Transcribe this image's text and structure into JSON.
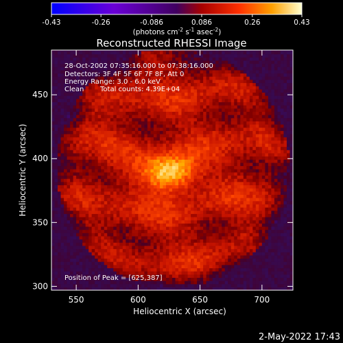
{
  "chart_data": {
    "type": "heatmap",
    "title": "Reconstructed RHESSI Image",
    "xlabel": "Heliocentric X (arcsec)",
    "ylabel": "Heliocentric Y (arcsec)",
    "xlim": [
      530,
      725
    ],
    "ylim": [
      297,
      485
    ],
    "x_ticks": [
      550,
      600,
      650,
      700
    ],
    "y_ticks": [
      300,
      350,
      400,
      450
    ],
    "colorbar": {
      "min": -0.43,
      "max": 0.43,
      "ticks": [
        "-0.43",
        "-0.26",
        "-0.086",
        "0.086",
        "0.26",
        "0.43"
      ],
      "unit_text": "(photons cm",
      "unit_exp1": "-2",
      "unit_mid": " s",
      "unit_exp2": "-1",
      "unit_end": " asec",
      "unit_exp3": "-2",
      "unit_close": ")"
    },
    "annotations": [
      "28-Oct-2002 07:35:16.000 to 07:38:16.000",
      "Detectors: 3F 4F 5F 6F 7F 8F, Att 0",
      "Energy Range: 3.0 - 6.0 keV"
    ],
    "clean_label": "Clean",
    "counts_label": "Total counts: 4.39E+04",
    "peak_label": "Position of Peak = [625,387]",
    "peak": {
      "x": 625,
      "y": 387,
      "value": 0.43
    },
    "disk_center": {
      "x": 627,
      "y": 392
    },
    "disk_radius_arcsec": 92,
    "background_value": -0.1
  },
  "footer": {
    "date_stamp": "2-May-2022 17:43"
  }
}
